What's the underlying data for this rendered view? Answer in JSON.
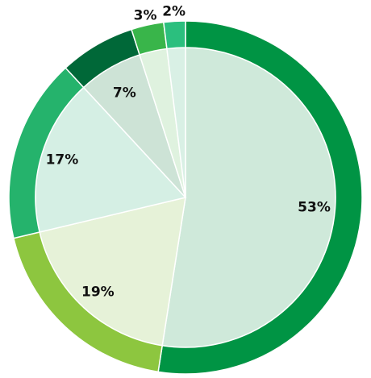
{
  "chart_data": {
    "type": "pie",
    "style": "donut-ring-with-inner-fill",
    "title": "",
    "legend": "none",
    "slices": [
      {
        "label": "53%",
        "value": 53,
        "ring_color": "#009444",
        "fill_color": "#cfe9da"
      },
      {
        "label": "19%",
        "value": 19,
        "ring_color": "#8dc63f",
        "fill_color": "#e6f2d8"
      },
      {
        "label": "17%",
        "value": 17,
        "ring_color": "#25b36c",
        "fill_color": "#d5efe4"
      },
      {
        "label": "7%",
        "value": 7,
        "ring_color": "#006838",
        "fill_color": "#cde3d6"
      },
      {
        "label": "3%",
        "value": 3,
        "ring_color": "#39b54a",
        "fill_color": "#dff2df"
      },
      {
        "label": "2%",
        "value": 2,
        "ring_color": "#2bbf7e",
        "fill_color": "#d9f0e5"
      }
    ]
  }
}
